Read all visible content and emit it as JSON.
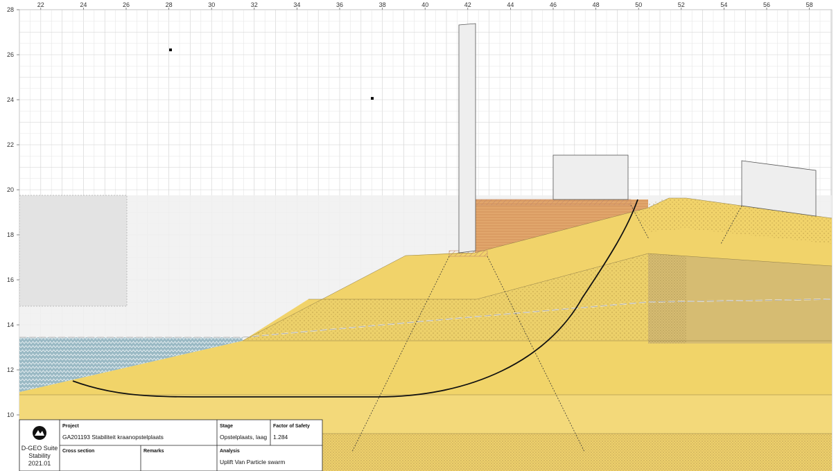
{
  "axes": {
    "x_ticks": [
      22,
      24,
      26,
      28,
      30,
      32,
      34,
      36,
      38,
      40,
      42,
      44,
      46,
      48,
      50,
      52,
      54,
      56,
      58
    ],
    "y_ticks": [
      10,
      12,
      14,
      16,
      18,
      20,
      22,
      24,
      26,
      28
    ]
  },
  "title_block": {
    "logo_lines": [
      "D-GEO Suite",
      "Stability",
      "2021.01"
    ],
    "project_label": "Project",
    "project_value": "GA201193 Stabiliteit kraanopstelplaats",
    "stage_label": "Stage",
    "stage_value": "Opstelplaats, laag",
    "fos_label": "Factor of Safety",
    "fos_value": "1.284",
    "cross_section_label": "Cross section",
    "remarks_label": "Remarks",
    "analysis_label": "Analysis",
    "analysis_value": "Uplift Van Particle swarm"
  },
  "colors": {
    "sand_light": "#f2d36b",
    "sand_mid": "#ead06a",
    "sand_dark": "#d7bc6c",
    "clay_orange": "#e0a069",
    "water": "#9ab9c4",
    "load_fill": "#eeeeee",
    "slip_circle": "#111111"
  }
}
